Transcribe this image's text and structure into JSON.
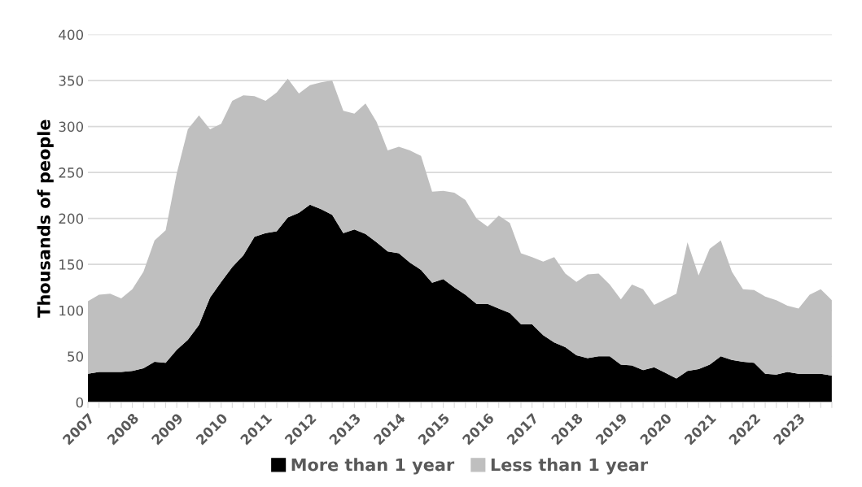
{
  "chart_data": {
    "type": "area",
    "stacked": true,
    "ylabel": "Thousands of people",
    "categories": [
      "2007",
      null,
      null,
      null,
      "2008",
      null,
      null,
      null,
      "2009",
      null,
      null,
      null,
      "2010",
      null,
      null,
      null,
      "2011",
      null,
      null,
      null,
      "2012",
      null,
      null,
      null,
      "2013",
      null,
      null,
      null,
      "2014",
      null,
      null,
      null,
      "2015",
      null,
      null,
      null,
      "2016",
      null,
      null,
      null,
      "2017",
      null,
      null,
      null,
      "2018",
      null,
      null,
      null,
      "2019",
      null,
      null,
      null,
      "2020",
      null,
      null,
      null,
      "2021",
      null,
      null,
      null,
      "2022",
      null,
      null,
      null,
      "2023",
      null,
      null,
      null
    ],
    "series": [
      {
        "name": "More than 1 year",
        "color": "#000000",
        "values": [
          31,
          33,
          33,
          33,
          34,
          37,
          44,
          43,
          57,
          68,
          84,
          114,
          131,
          147,
          160,
          180,
          184,
          186,
          201,
          206,
          215,
          210,
          204,
          184,
          188,
          183,
          174,
          164,
          162,
          152,
          144,
          130,
          134,
          125,
          117,
          107,
          107,
          102,
          97,
          85,
          85,
          73,
          65,
          60,
          51,
          48,
          50,
          50,
          41,
          40,
          35,
          38,
          32,
          26,
          34,
          36,
          41,
          50,
          46,
          44,
          43,
          31,
          30,
          33,
          31,
          31,
          31,
          29
        ]
      },
      {
        "name": "Less than 1 year",
        "color": "#bfbfbf",
        "values": [
          79,
          84,
          85,
          80,
          89,
          105,
          132,
          144,
          192,
          229,
          228,
          183,
          172,
          181,
          174,
          153,
          144,
          151,
          151,
          130,
          130,
          138,
          146,
          133,
          126,
          142,
          131,
          110,
          116,
          122,
          124,
          99,
          96,
          103,
          103,
          93,
          84,
          101,
          98,
          77,
          73,
          80,
          93,
          80,
          80,
          91,
          90,
          78,
          71,
          88,
          88,
          68,
          80,
          92,
          140,
          102,
          126,
          126,
          96,
          79,
          79,
          84,
          81,
          72,
          71,
          86,
          92,
          82
        ]
      }
    ],
    "ylim": [
      0,
      400
    ],
    "yticks": [
      0,
      50,
      100,
      150,
      200,
      250,
      300,
      350,
      400
    ],
    "grid": "y",
    "legend": "bottom"
  }
}
